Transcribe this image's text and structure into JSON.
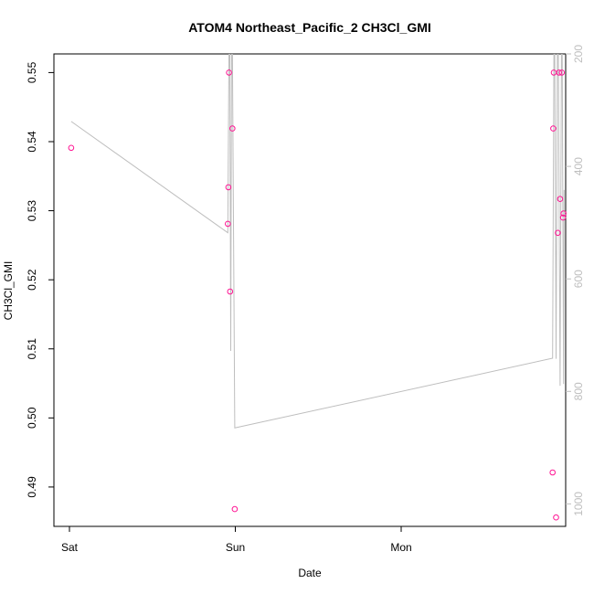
{
  "chart_data": {
    "type": "scatter",
    "title": "ATOM4 Northeast_Pacific_2 CH3Cl_GMI",
    "xlabel": "Date",
    "ylabel": "CH3Cl_GMI",
    "x_ticks": [
      "Sat",
      "Sun",
      "Mon"
    ],
    "y_ticks": [
      "0.49",
      "0.50",
      "0.51",
      "0.52",
      "0.53",
      "0.54",
      "0.55"
    ],
    "y2_ticks": [
      "200",
      "400",
      "600",
      "800",
      "1000"
    ],
    "ylim": [
      0.4843,
      0.5527
    ],
    "y2lim": [
      1040,
      200
    ],
    "point_color": "#ff1493",
    "line_color": "#bebebe",
    "series": [
      {
        "values": [
          {
            "x": "Sat 00:15",
            "y": 0.5391
          },
          {
            "x": "Sat 22:55",
            "y": 0.5281
          },
          {
            "x": "Sat 23:00",
            "y": 0.5334
          },
          {
            "x": "Sat 23:05",
            "y": 0.55
          },
          {
            "x": "Sat 23:15",
            "y": 0.5183
          },
          {
            "x": "Sat 23:35",
            "y": 0.5419
          },
          {
            "x": "Sat 23:55",
            "y": 0.4868
          },
          {
            "x": "Mon 21:55",
            "y": 0.4921
          },
          {
            "x": "Mon 22:00",
            "y": 0.5419
          },
          {
            "x": "Mon 22:05",
            "y": 0.55
          },
          {
            "x": "Mon 22:25",
            "y": 0.4856
          },
          {
            "x": "Mon 22:40",
            "y": 0.5268
          },
          {
            "x": "Mon 22:50",
            "y": 0.55
          },
          {
            "x": "Mon 23:00",
            "y": 0.5317
          },
          {
            "x": "Mon 23:15",
            "y": 0.55
          },
          {
            "x": "Mon 23:25",
            "y": 0.529
          },
          {
            "x": "Mon 23:30",
            "y": 0.5296
          }
        ]
      }
    ],
    "pressure_track": [
      {
        "x": "Sat 00:15",
        "p": 320
      },
      {
        "x": "Sat 22:55",
        "p": 518
      },
      {
        "x": "Sat 23:10",
        "p": 30
      },
      {
        "x": "Sat 23:20",
        "p": 728
      },
      {
        "x": "Sat 23:30",
        "p": 30
      },
      {
        "x": "Sat 23:55",
        "p": 865
      },
      {
        "x": "Mon 21:55",
        "p": 741
      },
      {
        "x": "Mon 22:10",
        "p": 30
      },
      {
        "x": "Mon 22:25",
        "p": 742
      },
      {
        "x": "Mon 22:40",
        "p": 30
      },
      {
        "x": "Mon 23:00",
        "p": 790
      },
      {
        "x": "Mon 23:15",
        "p": 30
      },
      {
        "x": "Mon 23:30",
        "p": 787
      },
      {
        "x": "Mon 23:35",
        "p": 442
      }
    ],
    "grid": false,
    "legend": "none"
  }
}
